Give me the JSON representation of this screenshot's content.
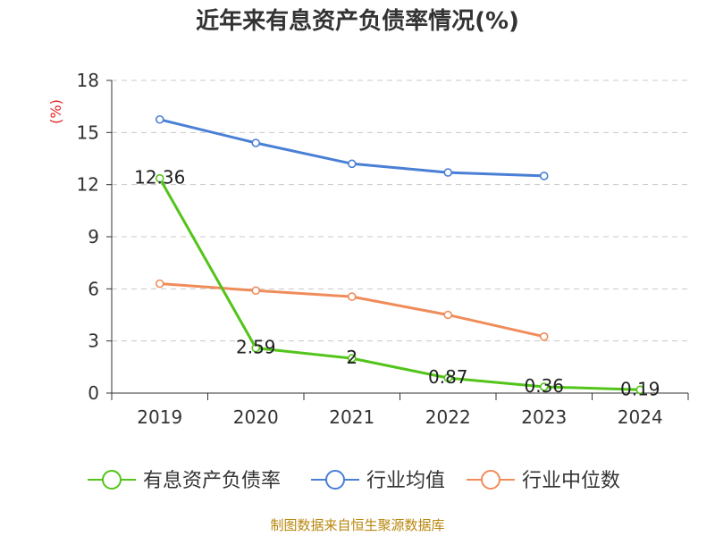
{
  "chart_data": {
    "type": "line",
    "title": "近年来有息资产负债率情况(%)",
    "ylabel": "(%)",
    "categories": [
      "2019",
      "2020",
      "2021",
      "2022",
      "2023",
      "2024"
    ],
    "ylim": [
      0,
      18
    ],
    "yticks": [
      "0",
      "3",
      "6",
      "9",
      "12",
      "15",
      "18"
    ],
    "grid": true,
    "legend_position": "bottom",
    "series": [
      {
        "name": "有息资产负债率",
        "color": "#52c41a",
        "show_labels": true,
        "values": [
          12.36,
          2.59,
          2,
          0.87,
          0.36,
          0.19
        ],
        "labels": [
          "12.36",
          "2.59",
          "2",
          "0.87",
          "0.36",
          "0.19"
        ]
      },
      {
        "name": "行业均值",
        "color": "#4a7fd6",
        "show_labels": false,
        "values": [
          15.75,
          14.4,
          13.2,
          12.7,
          12.5,
          null
        ],
        "labels": []
      },
      {
        "name": "行业中位数",
        "color": "#f08c5a",
        "show_labels": false,
        "values": [
          6.3,
          5.9,
          5.55,
          4.5,
          3.25,
          null
        ],
        "labels": []
      }
    ],
    "source": "制图数据来自恒生聚源数据库"
  }
}
